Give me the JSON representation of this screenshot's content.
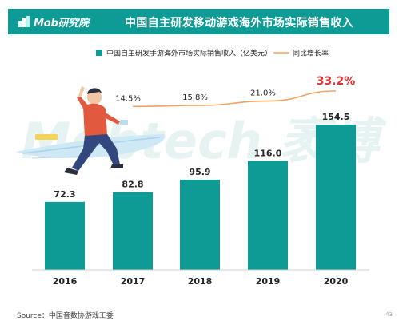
{
  "header": {
    "logo_text": "Mob研究院",
    "title": "中国自主研发移动游戏海外市场实际销售收入"
  },
  "watermark": "Mobtech 袤博",
  "source": "Source：中国音数协游戏工委",
  "page_number": "43",
  "colors": {
    "header_bg": "#0e9b95",
    "bar": "#0e9b95",
    "line": "#f2a263",
    "highlight_label": "#e8322d"
  },
  "chart_data": {
    "type": "bar",
    "categories": [
      "2016",
      "2017",
      "2018",
      "2019",
      "2020"
    ],
    "series": [
      {
        "name": "中国自主研发手游海外市场实际销售收入（亿美元）",
        "type": "bar",
        "values": [
          72.3,
          82.8,
          95.9,
          116.0,
          154.5
        ],
        "labels": [
          "72.3",
          "82.8",
          "95.9",
          "116.0",
          "154.5"
        ]
      },
      {
        "name": "同比增长率",
        "type": "line",
        "values": [
          null,
          14.5,
          15.8,
          21.0,
          33.2
        ],
        "labels": [
          "",
          "14.5%",
          "15.8%",
          "21.0%",
          "33.2%"
        ]
      }
    ],
    "ylim": [
      0,
      180
    ],
    "legend_position": "top",
    "grid": false
  }
}
